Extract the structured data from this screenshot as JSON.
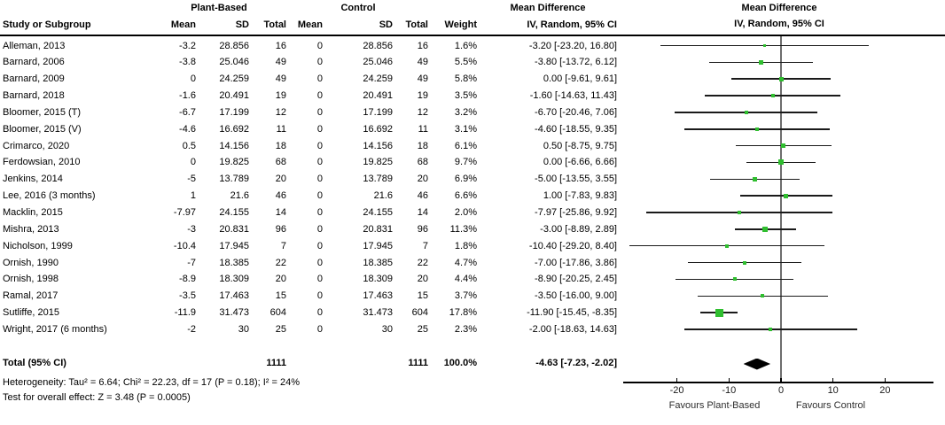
{
  "chart_data": {
    "type": "forest",
    "title": "Mean Difference forest plot, Plant-Based vs Control (IV, Random, 95% CI)",
    "group_labels": {
      "experimental": "Plant-Based",
      "control": "Control"
    },
    "column_headers": {
      "study": "Study or Subgroup",
      "mean": "Mean",
      "sd": "SD",
      "total": "Total",
      "weight": "Weight",
      "md_line1": "Mean Difference",
      "md_line2": "IV, Random, 95% CI"
    },
    "studies": [
      {
        "study": "Alleman, 2013",
        "mean_e": "-3.2",
        "sd_e": "28.856",
        "n_e": "16",
        "mean_c": "0",
        "sd_c": "28.856",
        "n_c": "16",
        "weight": "1.6%",
        "md_label": "-3.20 [-23.20, 16.80]",
        "md": -3.2,
        "lo": -23.2,
        "hi": 16.8,
        "w": 1.6
      },
      {
        "study": "Barnard, 2006",
        "mean_e": "-3.8",
        "sd_e": "25.046",
        "n_e": "49",
        "mean_c": "0",
        "sd_c": "25.046",
        "n_c": "49",
        "weight": "5.5%",
        "md_label": "-3.80 [-13.72, 6.12]",
        "md": -3.8,
        "lo": -13.72,
        "hi": 6.12,
        "w": 5.5
      },
      {
        "study": "Barnard, 2009",
        "mean_e": "0",
        "sd_e": "24.259",
        "n_e": "49",
        "mean_c": "0",
        "sd_c": "24.259",
        "n_c": "49",
        "weight": "5.8%",
        "md_label": "0.00 [-9.61, 9.61]",
        "md": 0,
        "lo": -9.61,
        "hi": 9.61,
        "w": 5.8
      },
      {
        "study": "Barnard, 2018",
        "mean_e": "-1.6",
        "sd_e": "20.491",
        "n_e": "19",
        "mean_c": "0",
        "sd_c": "20.491",
        "n_c": "19",
        "weight": "3.5%",
        "md_label": "-1.60 [-14.63, 11.43]",
        "md": -1.6,
        "lo": -14.63,
        "hi": 11.43,
        "w": 3.5
      },
      {
        "study": "Bloomer, 2015 (T)",
        "mean_e": "-6.7",
        "sd_e": "17.199",
        "n_e": "12",
        "mean_c": "0",
        "sd_c": "17.199",
        "n_c": "12",
        "weight": "3.2%",
        "md_label": "-6.70 [-20.46, 7.06]",
        "md": -6.7,
        "lo": -20.46,
        "hi": 7.06,
        "w": 3.2
      },
      {
        "study": "Bloomer, 2015 (V)",
        "mean_e": "-4.6",
        "sd_e": "16.692",
        "n_e": "11",
        "mean_c": "0",
        "sd_c": "16.692",
        "n_c": "11",
        "weight": "3.1%",
        "md_label": "-4.60 [-18.55, 9.35]",
        "md": -4.6,
        "lo": -18.55,
        "hi": 9.35,
        "w": 3.1
      },
      {
        "study": "Crimarco, 2020",
        "mean_e": "0.5",
        "sd_e": "14.156",
        "n_e": "18",
        "mean_c": "0",
        "sd_c": "14.156",
        "n_c": "18",
        "weight": "6.1%",
        "md_label": "0.50 [-8.75, 9.75]",
        "md": 0.5,
        "lo": -8.75,
        "hi": 9.75,
        "w": 6.1
      },
      {
        "study": "Ferdowsian, 2010",
        "mean_e": "0",
        "sd_e": "19.825",
        "n_e": "68",
        "mean_c": "0",
        "sd_c": "19.825",
        "n_c": "68",
        "weight": "9.7%",
        "md_label": "0.00 [-6.66, 6.66]",
        "md": 0,
        "lo": -6.66,
        "hi": 6.66,
        "w": 9.7
      },
      {
        "study": "Jenkins, 2014",
        "mean_e": "-5",
        "sd_e": "13.789",
        "n_e": "20",
        "mean_c": "0",
        "sd_c": "13.789",
        "n_c": "20",
        "weight": "6.9%",
        "md_label": "-5.00 [-13.55, 3.55]",
        "md": -5,
        "lo": -13.55,
        "hi": 3.55,
        "w": 6.9
      },
      {
        "study": "Lee, 2016 (3 months)",
        "mean_e": "1",
        "sd_e": "21.6",
        "n_e": "46",
        "mean_c": "0",
        "sd_c": "21.6",
        "n_c": "46",
        "weight": "6.6%",
        "md_label": "1.00 [-7.83, 9.83]",
        "md": 1,
        "lo": -7.83,
        "hi": 9.83,
        "w": 6.6
      },
      {
        "study": "Macklin, 2015",
        "mean_e": "-7.97",
        "sd_e": "24.155",
        "n_e": "14",
        "mean_c": "0",
        "sd_c": "24.155",
        "n_c": "14",
        "weight": "2.0%",
        "md_label": "-7.97 [-25.86, 9.92]",
        "md": -7.97,
        "lo": -25.86,
        "hi": 9.92,
        "w": 2.0
      },
      {
        "study": "Mishra, 2013",
        "mean_e": "-3",
        "sd_e": "20.831",
        "n_e": "96",
        "mean_c": "0",
        "sd_c": "20.831",
        "n_c": "96",
        "weight": "11.3%",
        "md_label": "-3.00 [-8.89, 2.89]",
        "md": -3,
        "lo": -8.89,
        "hi": 2.89,
        "w": 11.3
      },
      {
        "study": "Nicholson, 1999",
        "mean_e": "-10.4",
        "sd_e": "17.945",
        "n_e": "7",
        "mean_c": "0",
        "sd_c": "17.945",
        "n_c": "7",
        "weight": "1.8%",
        "md_label": "-10.40 [-29.20, 8.40]",
        "md": -10.4,
        "lo": -29.2,
        "hi": 8.4,
        "w": 1.8
      },
      {
        "study": "Ornish, 1990",
        "mean_e": "-7",
        "sd_e": "18.385",
        "n_e": "22",
        "mean_c": "0",
        "sd_c": "18.385",
        "n_c": "22",
        "weight": "4.7%",
        "md_label": "-7.00 [-17.86, 3.86]",
        "md": -7,
        "lo": -17.86,
        "hi": 3.86,
        "w": 4.7
      },
      {
        "study": "Ornish, 1998",
        "mean_e": "-8.9",
        "sd_e": "18.309",
        "n_e": "20",
        "mean_c": "0",
        "sd_c": "18.309",
        "n_c": "20",
        "weight": "4.4%",
        "md_label": "-8.90 [-20.25, 2.45]",
        "md": -8.9,
        "lo": -20.25,
        "hi": 2.45,
        "w": 4.4
      },
      {
        "study": "Ramal, 2017",
        "mean_e": "-3.5",
        "sd_e": "17.463",
        "n_e": "15",
        "mean_c": "0",
        "sd_c": "17.463",
        "n_c": "15",
        "weight": "3.7%",
        "md_label": "-3.50 [-16.00, 9.00]",
        "md": -3.5,
        "lo": -16.0,
        "hi": 9.0,
        "w": 3.7
      },
      {
        "study": "Sutliffe, 2015",
        "mean_e": "-11.9",
        "sd_e": "31.473",
        "n_e": "604",
        "mean_c": "0",
        "sd_c": "31.473",
        "n_c": "604",
        "weight": "17.8%",
        "md_label": "-11.90 [-15.45, -8.35]",
        "md": -11.9,
        "lo": -15.45,
        "hi": -8.35,
        "w": 17.8
      },
      {
        "study": "Wright, 2017 (6 months)",
        "mean_e": "-2",
        "sd_e": "30",
        "n_e": "25",
        "mean_c": "0",
        "sd_c": "30",
        "n_c": "25",
        "weight": "2.3%",
        "md_label": "-2.00 [-18.63, 14.63]",
        "md": -2,
        "lo": -18.63,
        "hi": 14.63,
        "w": 2.3
      }
    ],
    "total": {
      "label": "Total (95% CI)",
      "n_e": "1111",
      "n_c": "1111",
      "weight": "100.0%",
      "md_label": "-4.63 [-7.23, -2.02]",
      "md": -4.63,
      "lo": -7.23,
      "hi": -2.02
    },
    "heterogeneity": "Heterogeneity: Tau² = 6.64; Chi² = 22.23, df = 17 (P = 0.18); I² = 24%",
    "overall_effect": "Test for overall effect: Z = 3.48 (P = 0.0005)",
    "axis": {
      "ticks": [
        {
          "label": "-20",
          "value": -20
        },
        {
          "label": "-10",
          "value": -10
        },
        {
          "label": "0",
          "value": 0
        },
        {
          "label": "10",
          "value": 10
        },
        {
          "label": "20",
          "value": 20
        }
      ],
      "range": [
        -30.2,
        29.3
      ]
    },
    "favours": {
      "left": "Favours Plant-Based",
      "right": "Favours Control"
    },
    "colors": {
      "marker": "#2FBE2F",
      "diamond": "#000000",
      "zero_line": "#6e6e6e",
      "ci_line": "#1a1a1a"
    }
  }
}
